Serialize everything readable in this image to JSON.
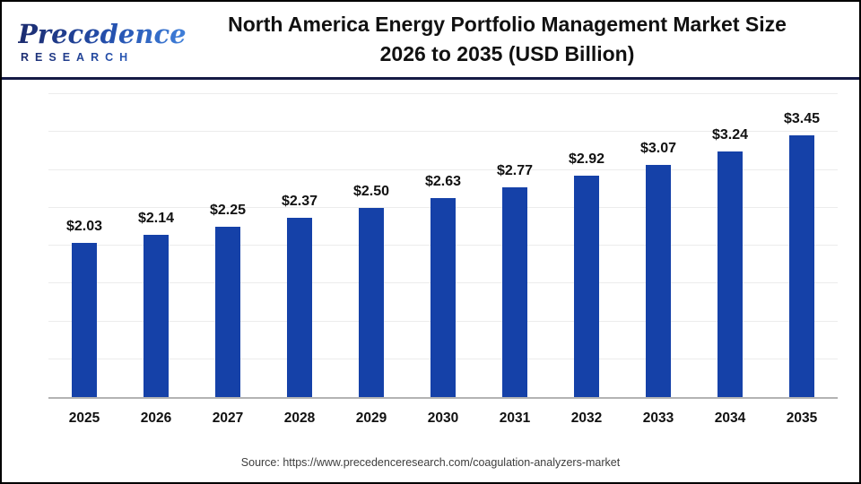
{
  "header": {
    "logo": {
      "line1": "Precedence",
      "line2": "RESEARCH"
    },
    "title_line1": "North America Energy Portfolio Management Market Size",
    "title_line2": "2026 to 2035 (USD Billion)"
  },
  "chart_data": {
    "type": "bar",
    "title": "North America Energy Portfolio Management Market Size 2026 to 2035 (USD Billion)",
    "categories": [
      "2025",
      "2026",
      "2027",
      "2028",
      "2029",
      "2030",
      "2031",
      "2032",
      "2033",
      "2034",
      "2035"
    ],
    "values": [
      2.03,
      2.14,
      2.25,
      2.37,
      2.5,
      2.63,
      2.77,
      2.92,
      3.07,
      3.24,
      3.45
    ],
    "value_labels": [
      "$2.03",
      "$2.14",
      "$2.25",
      "$2.37",
      "$2.50",
      "$2.63",
      "$2.77",
      "$2.92",
      "$3.07",
      "$3.24",
      "$3.45"
    ],
    "unit": "USD Billion",
    "xlabel": "",
    "ylabel": "",
    "ylim": [
      0,
      4
    ],
    "gridline_step": 0.5,
    "grid": "on",
    "legend": "none",
    "bar_color": "#1541A8"
  },
  "footer": {
    "source": "Source: https://www.precedenceresearch.com/coagulation-analyzers-market"
  },
  "colors": {
    "bar": "#1541A8",
    "divider": "#151A45",
    "gridline": "#ECECEC",
    "axis_line": "#B3B3B3",
    "title_text": "#111111",
    "source_text": "#3D3D3D",
    "logo_navy": "#1C2B6E",
    "logo_blue": "#3F7FD9"
  }
}
